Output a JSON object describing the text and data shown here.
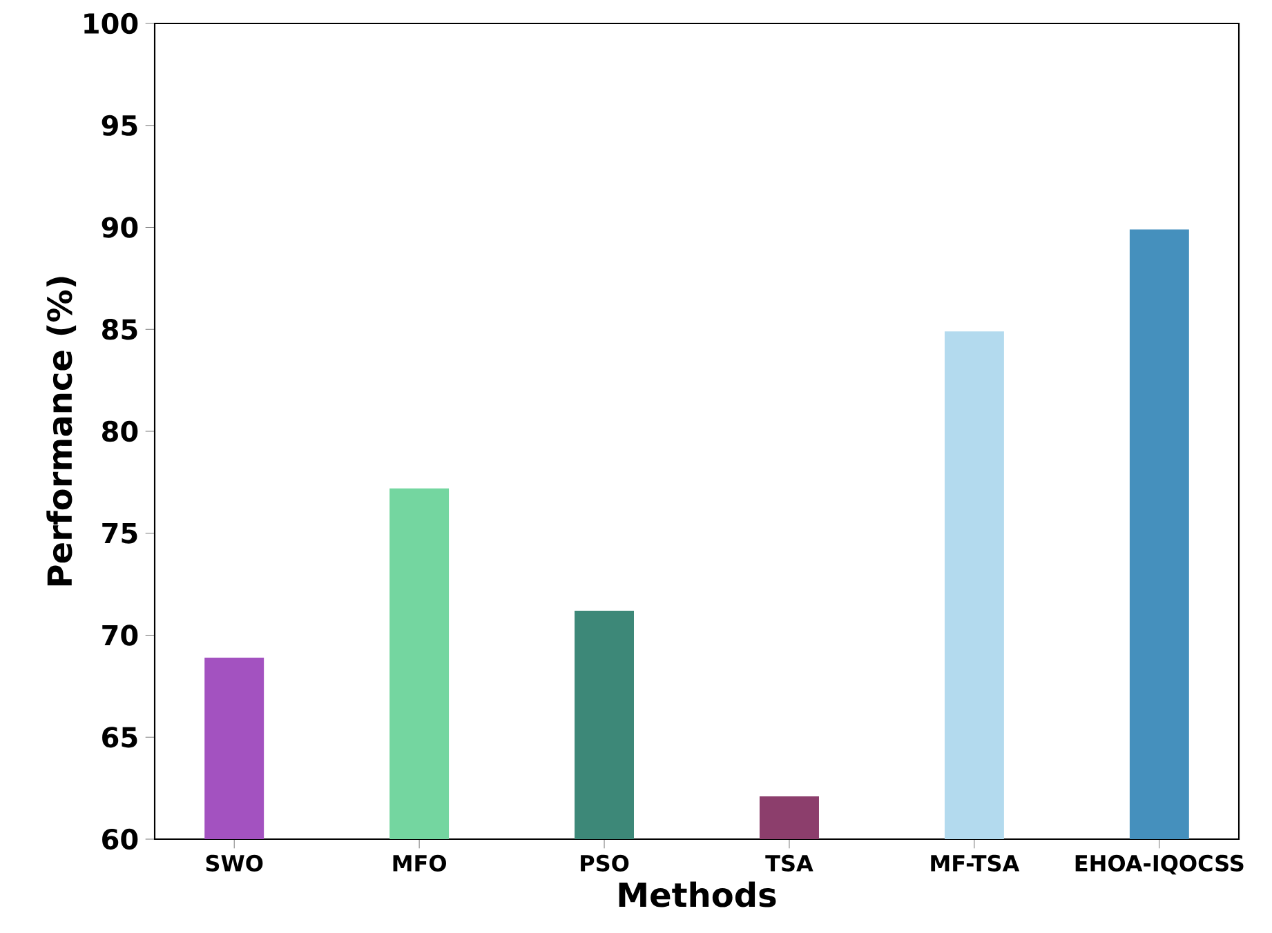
{
  "chart_data": {
    "type": "bar",
    "xlabel": "Methods",
    "ylabel": "Performance (%)",
    "categories": [
      "SWO",
      "MFO",
      "PSO",
      "TSA",
      "MF-TSA",
      "EHOA-IQOCSS"
    ],
    "values": [
      68.9,
      77.2,
      71.2,
      62.1,
      84.9,
      89.9
    ],
    "colors": [
      "#a352c0",
      "#74d6a0",
      "#3d8878",
      "#8c3e6c",
      "#b3daee",
      "#4590bd"
    ],
    "ylim": [
      60,
      100
    ],
    "yticks": [
      60,
      65,
      70,
      75,
      80,
      85,
      90,
      95,
      100
    ],
    "grid": false
  }
}
